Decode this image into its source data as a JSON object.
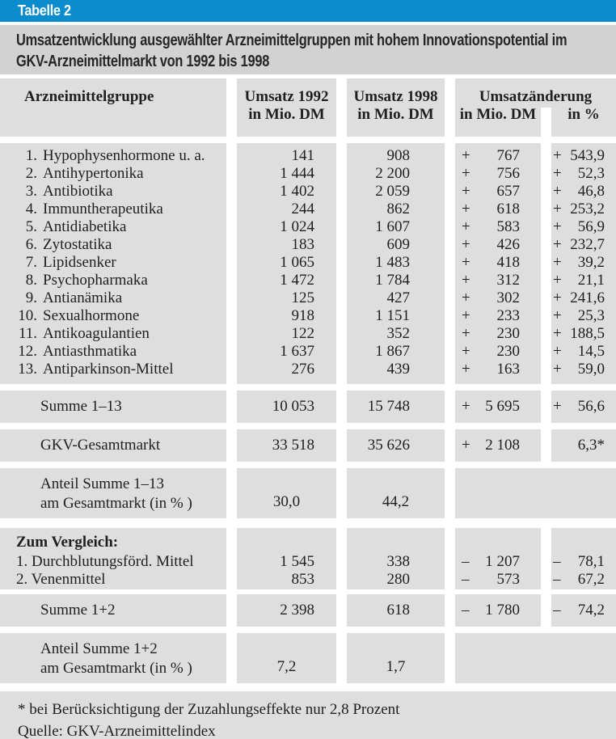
{
  "header": {
    "label": "Tabelle 2",
    "title": "Umsatzentwicklung ausgewählter Arzneimittelgruppen mit hohem Innovationspotential im GKV-Arzneimittelmarkt von 1992 bis 1998"
  },
  "columns": {
    "group": "Arzneimittelgruppe",
    "u1992_l1": "Umsatz 1992",
    "u1992_l2": "in Mio. DM",
    "u1998_l1": "Umsatz 1998",
    "u1998_l2": "in Mio. DM",
    "change": "Umsatzänderung",
    "change_dm": "in Mio. DM",
    "change_pct": "in %"
  },
  "rows": [
    {
      "num": "1.",
      "name": "Hypophysenhormone u. a.",
      "v1992": "141",
      "v1998": "908",
      "chg_sign": "+",
      "chg": "767",
      "pct_sign": "+",
      "pct": "543,9"
    },
    {
      "num": "2.",
      "name": "Antihypertonika",
      "v1992": "1 444",
      "v1998": "2 200",
      "chg_sign": "+",
      "chg": "756",
      "pct_sign": "+",
      "pct": "52,3"
    },
    {
      "num": "3.",
      "name": "Antibiotika",
      "v1992": "1 402",
      "v1998": "2 059",
      "chg_sign": "+",
      "chg": "657",
      "pct_sign": "+",
      "pct": "46,8"
    },
    {
      "num": "4.",
      "name": "Immuntherapeutika",
      "v1992": "244",
      "v1998": "862",
      "chg_sign": "+",
      "chg": "618",
      "pct_sign": "+",
      "pct": "253,2"
    },
    {
      "num": "5.",
      "name": "Antidiabetika",
      "v1992": "1 024",
      "v1998": "1 607",
      "chg_sign": "+",
      "chg": "583",
      "pct_sign": "+",
      "pct": "56,9"
    },
    {
      "num": "6.",
      "name": "Zytostatika",
      "v1992": "183",
      "v1998": "609",
      "chg_sign": "+",
      "chg": "426",
      "pct_sign": "+",
      "pct": "232,7"
    },
    {
      "num": "7.",
      "name": "Lipidsenker",
      "v1992": "1 065",
      "v1998": "1 483",
      "chg_sign": "+",
      "chg": "418",
      "pct_sign": "+",
      "pct": "39,2"
    },
    {
      "num": "8.",
      "name": "Psychopharmaka",
      "v1992": "1 472",
      "v1998": "1 784",
      "chg_sign": "+",
      "chg": "312",
      "pct_sign": "+",
      "pct": "21,1"
    },
    {
      "num": "9.",
      "name": "Antianämika",
      "v1992": "125",
      "v1998": "427",
      "chg_sign": "+",
      "chg": "302",
      "pct_sign": "+",
      "pct": "241,6"
    },
    {
      "num": "10.",
      "name": "Sexualhormone",
      "v1992": "918",
      "v1998": "1 151",
      "chg_sign": "+",
      "chg": "233",
      "pct_sign": "+",
      "pct": "25,3"
    },
    {
      "num": "11.",
      "name": "Antikoagulantien",
      "v1992": "122",
      "v1998": "352",
      "chg_sign": "+",
      "chg": "230",
      "pct_sign": "+",
      "pct": "188,5"
    },
    {
      "num": "12.",
      "name": "Antiasthmatika",
      "v1992": "1 637",
      "v1998": "1 867",
      "chg_sign": "+",
      "chg": "230",
      "pct_sign": "+",
      "pct": "14,5"
    },
    {
      "num": "13.",
      "name": "Antiparkinson-Mittel",
      "v1992": "276",
      "v1998": "439",
      "chg_sign": "+",
      "chg": "163",
      "pct_sign": "+",
      "pct": "59,0"
    }
  ],
  "summe13": {
    "name": "Summe 1–13",
    "v1992": "10 053",
    "v1998": "15 748",
    "chg_sign": "+",
    "chg": "5 695",
    "pct_sign": "+",
    "pct": "56,6"
  },
  "gkv": {
    "name": "GKV-Gesamtmarkt",
    "v1992": "33 518",
    "v1998": "35 626",
    "chg_sign": "+",
    "chg": "2 108",
    "pct": "6,3*"
  },
  "anteil13": {
    "line1": "Anteil Summe 1–13",
    "line2": "am Gesamtmarkt (in % )",
    "v1992": "30,0",
    "v1998": "44,2"
  },
  "vergleich": {
    "label": "Zum Vergleich:",
    "rows": [
      {
        "name": "1. Durchblutungsförd. Mittel",
        "v1992": "1 545",
        "v1998": "338",
        "chg_sign": "–",
        "chg": "1 207",
        "pct_sign": "–",
        "pct": "78,1"
      },
      {
        "name": "2. Venenmittel",
        "v1992": "853",
        "v1998": "280",
        "chg_sign": "–",
        "chg": "573",
        "pct_sign": "–",
        "pct": "67,2"
      }
    ]
  },
  "summe12": {
    "name": "Summe 1+2",
    "v1992": "2 398",
    "v1998": "618",
    "chg_sign": "–",
    "chg": "1 780",
    "pct_sign": "–",
    "pct": "74,2"
  },
  "anteil12": {
    "line1": "Anteil Summe 1+2",
    "line2": "am Gesamtmarkt (in % )",
    "v1992": "7,2",
    "v1998": "1,7"
  },
  "footnotes": {
    "asterisk": "* bei Berücksichtigung der Zuzahlungseffekte nur 2,8 Prozent",
    "source": "Quelle: GKV-Arzneimittelindex"
  },
  "colors": {
    "accent_blue": "#0b8ccd",
    "band_gray": "#d2d2d2",
    "cell_gray": "#dedede"
  }
}
